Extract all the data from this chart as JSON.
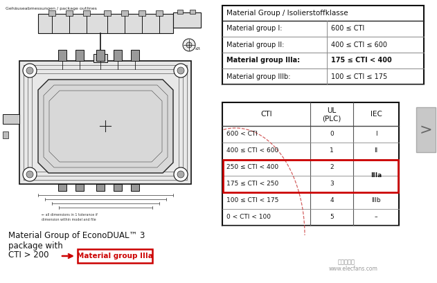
{
  "bg_color": "#f5f5f5",
  "left_bg": "#ffffff",
  "table1_title": "Material Group / Isolierstoffklasse",
  "table1_rows": [
    [
      "Material group I:",
      "600 ≤ CTI"
    ],
    [
      "Material group II:",
      "400 ≤ CTI ≤ 600"
    ],
    [
      "Material group IIIa:",
      "175 ≤ CTI < 400"
    ],
    [
      "Material group IIIb:",
      "100 ≤ CTI ≤ 175"
    ]
  ],
  "table1_bold_row": 2,
  "table2_rows": [
    [
      "600 < CTI",
      "0",
      "I"
    ],
    [
      "400 ≤ CTI < 600",
      "1",
      "II"
    ],
    [
      "250 ≤ CTI < 400",
      "2",
      "IIIa"
    ],
    [
      "175 ≤ CTI < 250",
      "3",
      ""
    ],
    [
      "100 ≤ CTI < 175",
      "4",
      "IIIb"
    ],
    [
      "0 < CTI < 100",
      "5",
      "–"
    ]
  ],
  "table2_highlight_rows": [
    2,
    3
  ],
  "bottom_text_line1": "Material Group of EconoDUAL™ 3",
  "bottom_text_line2": "package with",
  "bottom_text_line3": "CTI > 200",
  "bottom_arrow_text": "Material group IIIa",
  "watermark": "www.elecfans.com",
  "nav_arrow": ">",
  "title_left": "Gehäuseabmessungen / package outlines"
}
